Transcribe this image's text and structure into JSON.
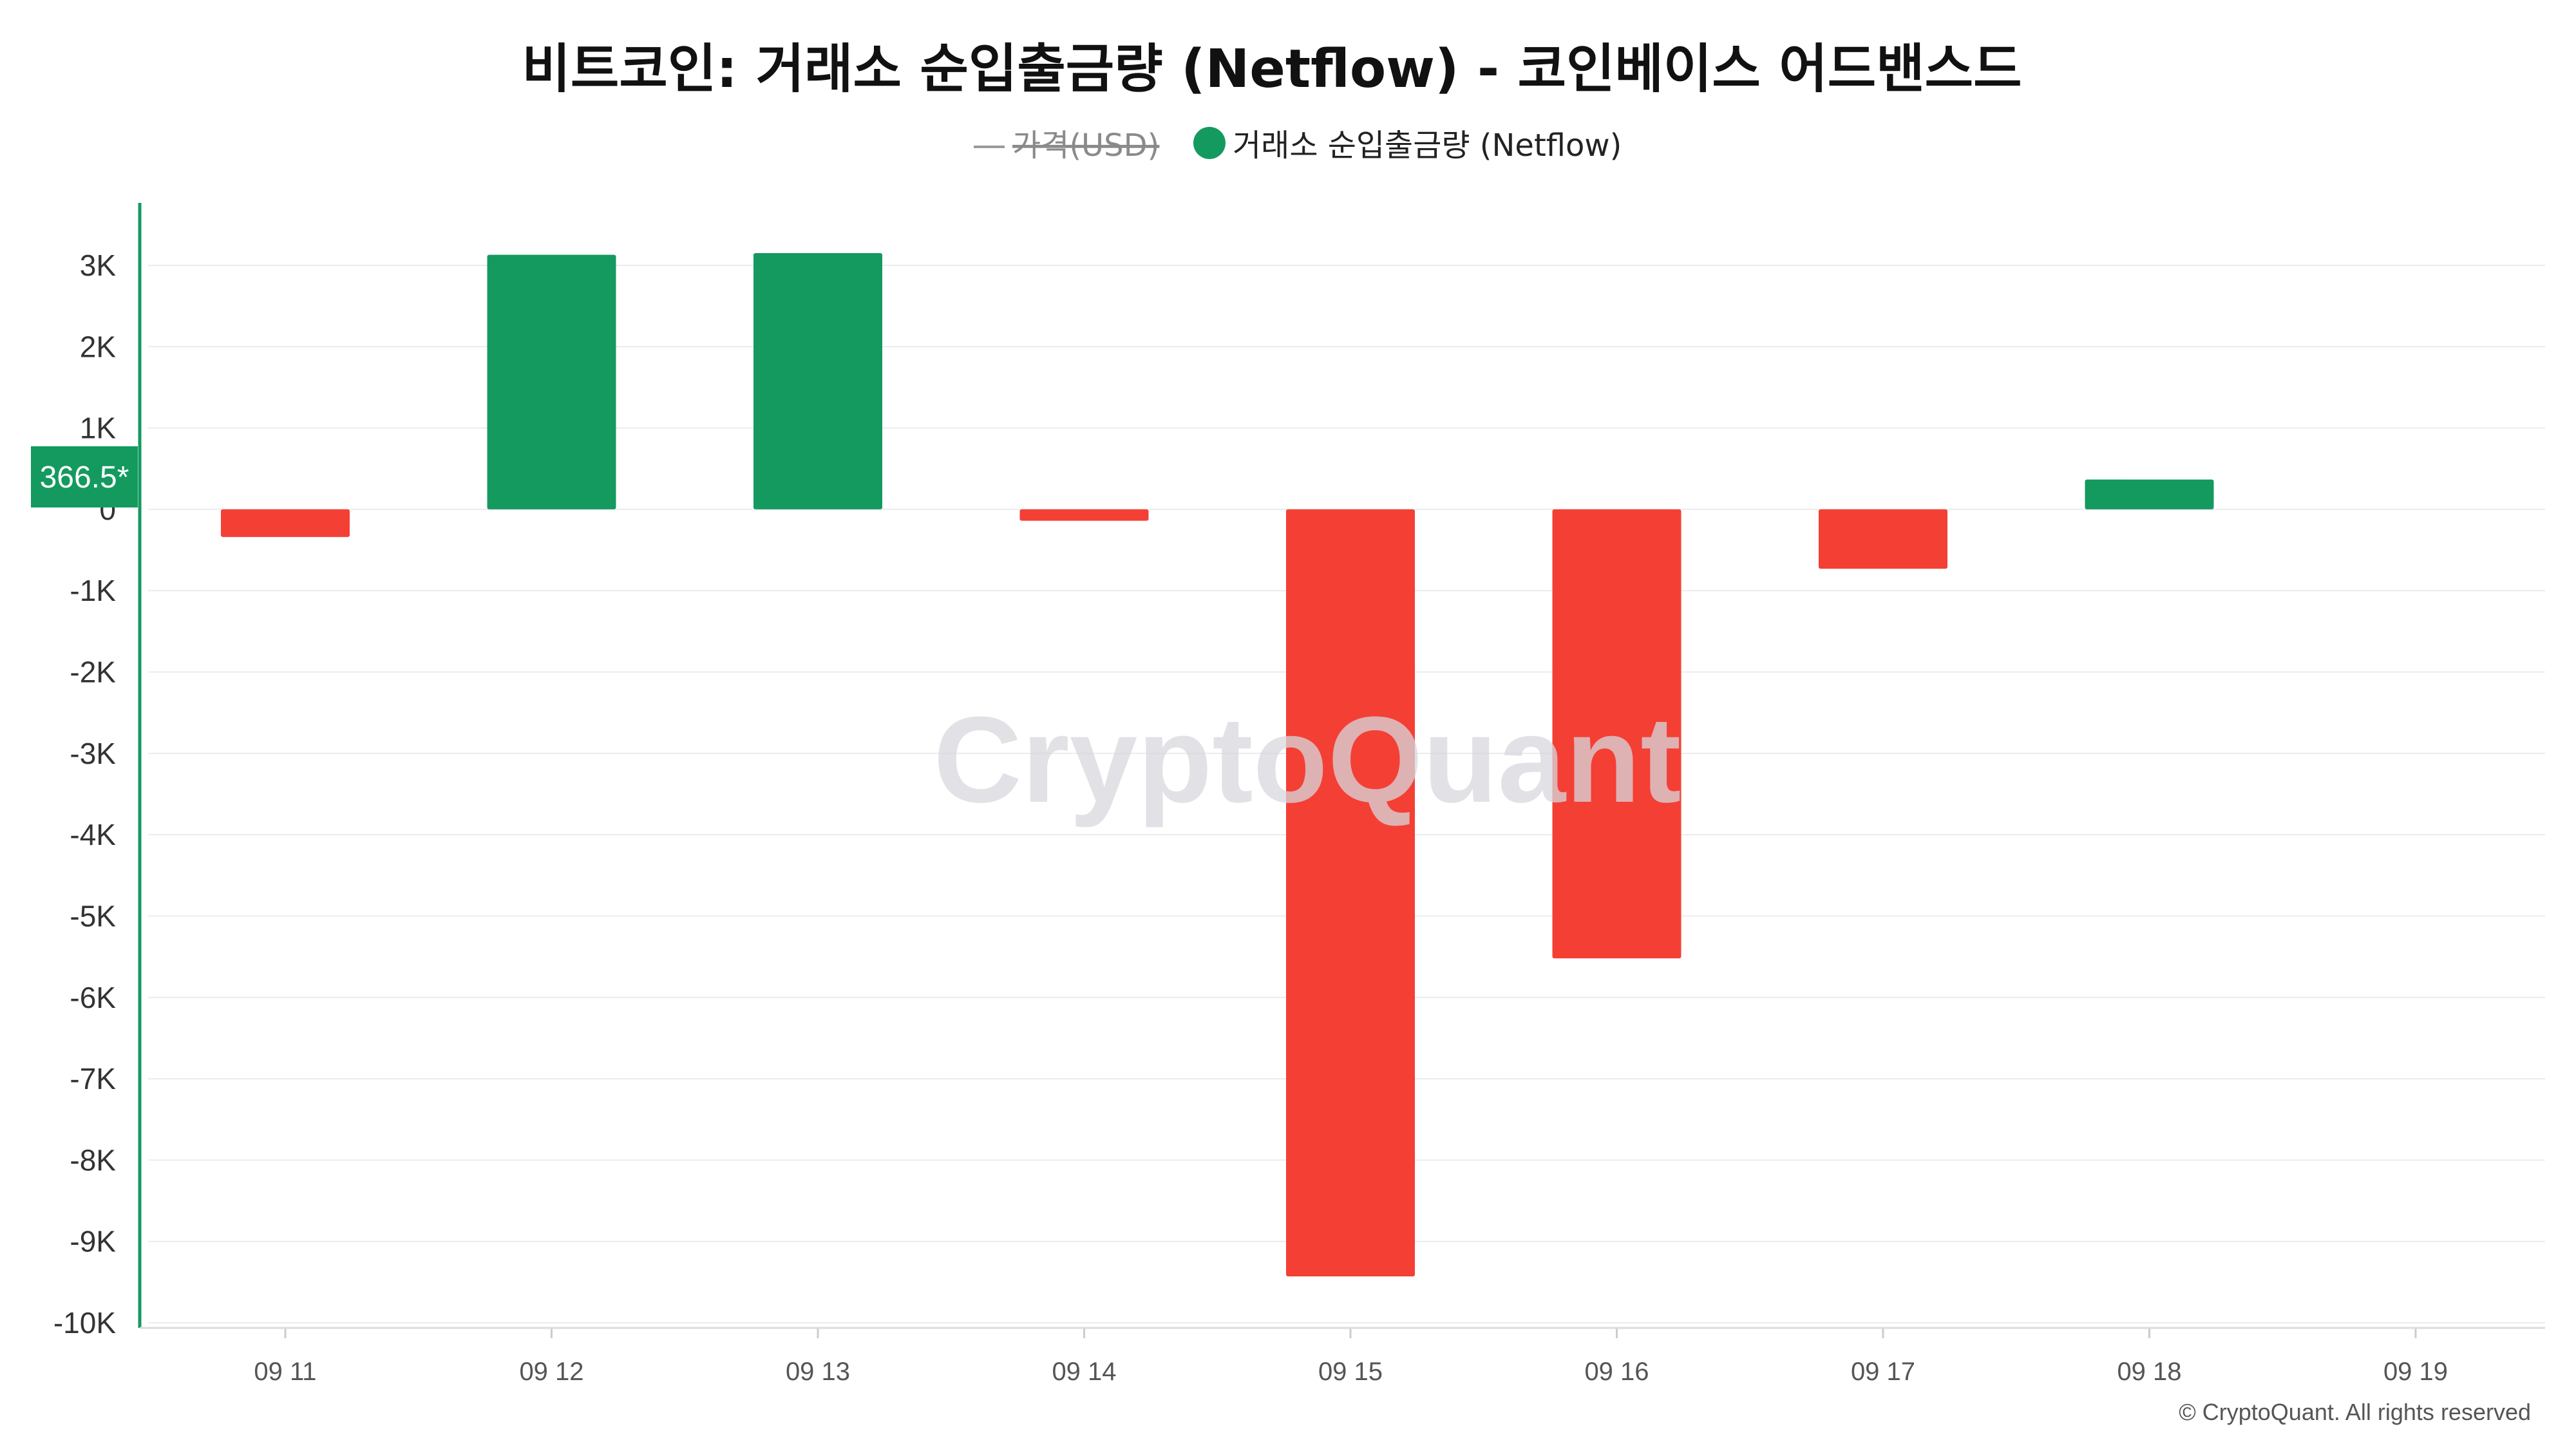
{
  "chart_data": {
    "type": "bar",
    "title": "비트코인: 거래소 순입출금량 (Netflow) - 코인베이스 어드밴스드",
    "legend": [
      {
        "label": "가격(USD)",
        "hidden": true,
        "marker": "line",
        "color": "#8a8a8a"
      },
      {
        "label": "거래소 순입출금량 (Netflow)",
        "hidden": false,
        "marker": "circle",
        "color": "#149a5f"
      }
    ],
    "legend_placement": "top-center",
    "categories": [
      "09 11",
      "09 12",
      "09 13",
      "09 14",
      "09 15",
      "09 16",
      "09 17",
      "09 18",
      "09 19"
    ],
    "series": [
      {
        "name": "거래소 순입출금량 (Netflow)",
        "values": [
          -340,
          3130,
          3150,
          -140,
          -9430,
          -5520,
          -730,
          366.5,
          null
        ]
      }
    ],
    "y_ticks": [
      3000,
      2000,
      1000,
      0,
      -1000,
      -2000,
      -3000,
      -4000,
      -5000,
      -6000,
      -7000,
      -8000,
      -9000,
      -10000
    ],
    "y_tick_labels": [
      "3K",
      "2K",
      "1K",
      "0",
      "-1K",
      "-2K",
      "-3K",
      "-4K",
      "-5K",
      "-6K",
      "-7K",
      "-8K",
      "-9K",
      "-10K"
    ],
    "ylim": [
      -10000,
      3000
    ],
    "grid": true,
    "current_value_label": "366.5*",
    "watermark": "CryptoQuant",
    "copyright": "© CryptoQuant. All rights reserved",
    "colors": {
      "positive": "#149a5f",
      "negative": "#f43f35",
      "axis": "#149a5f",
      "grid": "#ececec"
    }
  }
}
